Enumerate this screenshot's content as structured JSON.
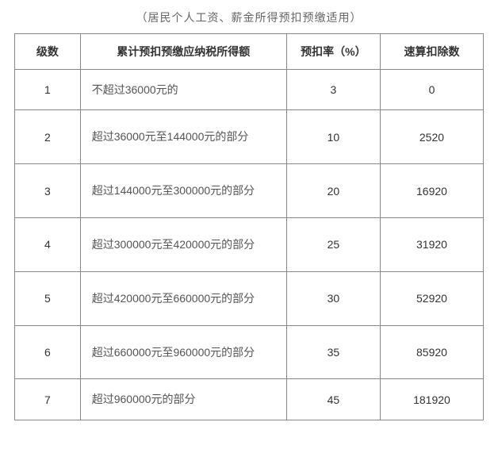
{
  "caption": "（居民个人工资、薪金所得预扣预缴适用）",
  "table": {
    "columns": [
      "级数",
      "累计预扣预缴应纳税所得额",
      "预扣率（%）",
      "速算扣除数"
    ],
    "rows": [
      {
        "level": "1",
        "desc": "不超过36000元的",
        "rate": "3",
        "deduct": "0",
        "single": true
      },
      {
        "level": "2",
        "desc": "超过36000元至144000元的部分",
        "rate": "10",
        "deduct": "2520",
        "single": false
      },
      {
        "level": "3",
        "desc": "超过144000元至300000元的部分",
        "rate": "20",
        "deduct": "16920",
        "single": false
      },
      {
        "level": "4",
        "desc": "超过300000元至420000元的部分",
        "rate": "25",
        "deduct": "31920",
        "single": false
      },
      {
        "level": "5",
        "desc": "超过420000元至660000元的部分",
        "rate": "30",
        "deduct": "52920",
        "single": false
      },
      {
        "level": "6",
        "desc": "超过660000元至960000元的部分",
        "rate": "35",
        "deduct": "85920",
        "single": false
      },
      {
        "level": "7",
        "desc": "超过960000元的部分",
        "rate": "45",
        "deduct": "181920",
        "single": true
      }
    ]
  }
}
